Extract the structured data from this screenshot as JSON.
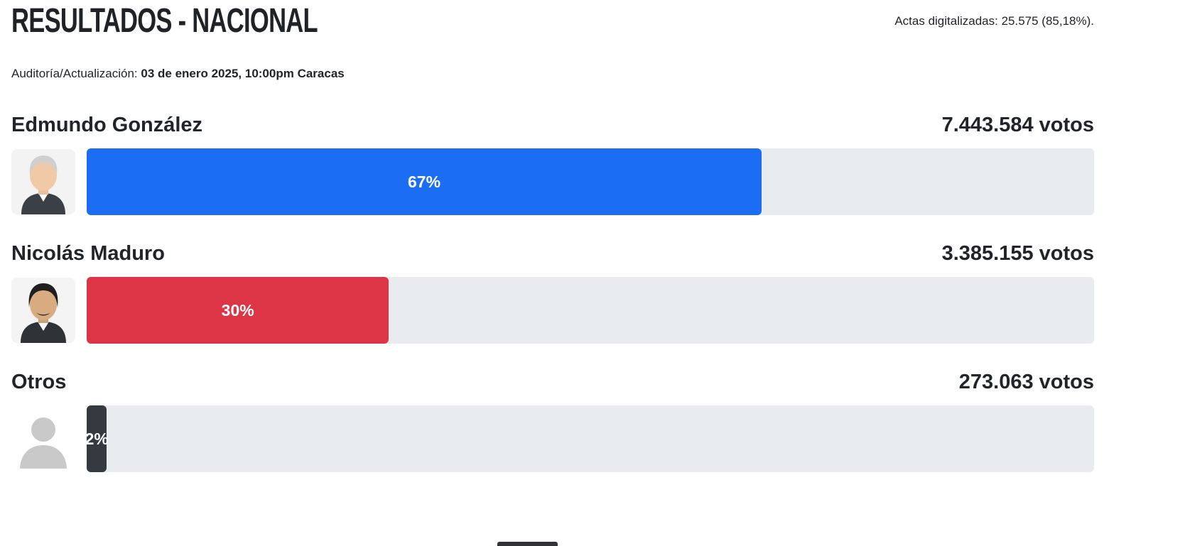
{
  "page": {
    "title": "RESULTADOS - NACIONAL",
    "actas_digitalizadas": "Actas digitalizadas: 25.575 (85,18%).",
    "audit_label": "Auditoría/Actualización:",
    "audit_value": "03 de enero 2025, 10:00pm Caracas"
  },
  "candidates": [
    {
      "name": "Edmundo González",
      "votes": "7.443.584 votos",
      "percent": 67,
      "percent_label": "67%",
      "color": "#1b6ef3",
      "avatar": "edmundo-gonzalez-photo"
    },
    {
      "name": "Nicolás Maduro",
      "votes": "3.385.155 votos",
      "percent": 30,
      "percent_label": "30%",
      "color": "#dc3545",
      "avatar": "nicolas-maduro-photo"
    },
    {
      "name": "Otros",
      "votes": "273.063 votos",
      "percent": 2,
      "percent_label": "2%",
      "color": "#343a40",
      "avatar": "generic-person-avatar"
    }
  ],
  "chart_data": {
    "type": "bar",
    "orientation": "horizontal",
    "title": "RESULTADOS - NACIONAL",
    "categories": [
      "Edmundo González",
      "Nicolás Maduro",
      "Otros"
    ],
    "series": [
      {
        "name": "percent",
        "values": [
          67,
          30,
          2
        ]
      },
      {
        "name": "votes",
        "values": [
          7443584,
          3385155,
          273063
        ]
      }
    ],
    "value_labels": [
      "67%",
      "30%",
      "2%"
    ],
    "vote_labels": [
      "7.443.584 votos",
      "3.385.155 votos",
      "273.063 votos"
    ],
    "bar_colors": [
      "#1b6ef3",
      "#dc3545",
      "#343a40"
    ],
    "track_color": "#e9ecef",
    "xlim": [
      0,
      100
    ],
    "grid": false,
    "legend": false,
    "annotations": [
      "Actas digitalizadas: 25.575 (85,18%).",
      "Auditoría/Actualización: 03 de enero 2025, 10:00pm Caracas"
    ]
  },
  "colors": {
    "blue_bar": "#1b6ef3",
    "red_bar": "#dc3545",
    "dark_bar": "#343a40",
    "track": "#e9ecef",
    "text": "#212529"
  }
}
